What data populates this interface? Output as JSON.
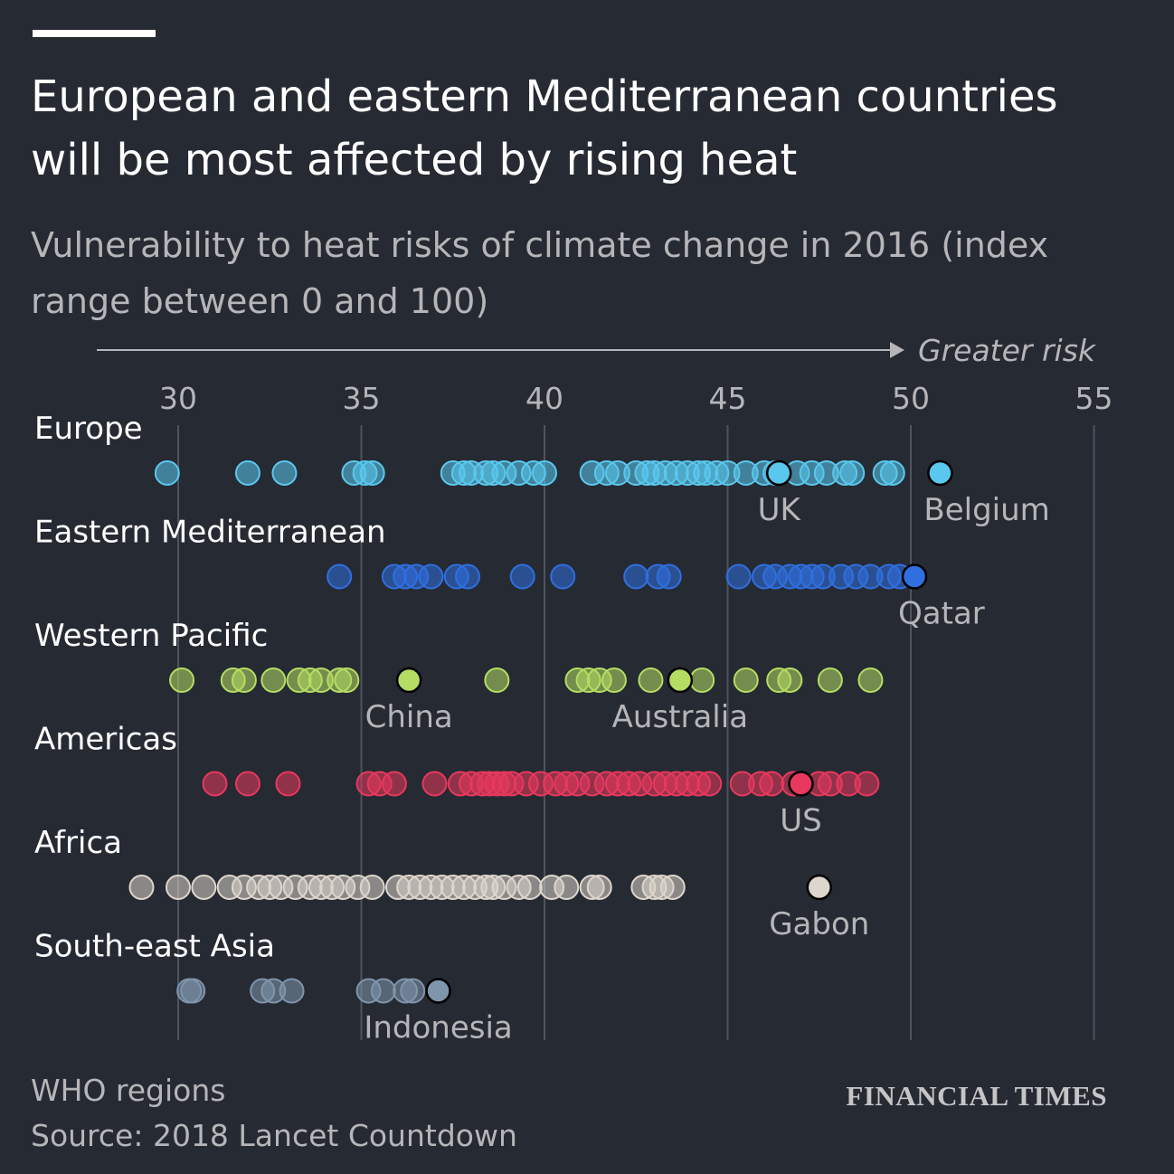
{
  "header": {
    "title": "European and eastern Mediterranean countries will be most affected by rising heat",
    "subtitle": "Vulnerability to heat risks of climate change in 2016 (index range between 0 and 100)"
  },
  "footer": {
    "note": "WHO regions",
    "source": "Source: 2018 Lancet Countdown",
    "logo": "FINANCIAL TIMES"
  },
  "chart_data": {
    "type": "scatter",
    "title": "European and eastern Mediterranean countries will be most affected by rising heat",
    "subtitle": "Vulnerability to heat risks of climate change in 2016 (index range between 0 and 100)",
    "axis_direction_label": "Greater risk",
    "xlim": [
      27,
      56
    ],
    "ticks": [
      30,
      35,
      40,
      45,
      50,
      55
    ],
    "grid": true,
    "series": [
      {
        "name": "Europe",
        "color": "#5ac8ee",
        "values": [
          29.7,
          31.9,
          32.9,
          34.8,
          35.1,
          35.3,
          37.5,
          37.8,
          38.0,
          38.4,
          38.6,
          38.9,
          39.3,
          39.7,
          40.0,
          41.3,
          41.7,
          42.0,
          42.5,
          42.8,
          43.0,
          43.3,
          43.6,
          43.9,
          44.2,
          44.4,
          44.7,
          45.0,
          45.5,
          46.0,
          46.3,
          46.9,
          47.3,
          47.7,
          48.2,
          48.4,
          49.3,
          49.5
        ],
        "highlights": [
          {
            "label": "UK",
            "value": 46.4
          },
          {
            "label": "Belgium",
            "value": 50.8
          }
        ]
      },
      {
        "name": "Eastern Mediterranean",
        "color": "#2f6fe0",
        "values": [
          34.4,
          35.9,
          36.2,
          36.5,
          36.9,
          37.6,
          37.9,
          39.4,
          40.5,
          42.5,
          43.1,
          43.4,
          45.3,
          46.0,
          46.3,
          46.7,
          47.0,
          47.3,
          47.6,
          48.1,
          48.5,
          48.9,
          49.4,
          49.7
        ],
        "highlights": [
          {
            "label": "Qatar",
            "value": 50.1
          }
        ]
      },
      {
        "name": "Western Pacific",
        "color": "#b5dc63",
        "values": [
          30.1,
          31.5,
          31.8,
          32.6,
          33.3,
          33.6,
          33.9,
          34.4,
          34.6,
          38.7,
          40.9,
          41.2,
          41.5,
          41.9,
          42.9,
          44.3,
          45.5,
          46.4,
          46.7,
          47.8,
          48.9
        ],
        "highlights": [
          {
            "label": "China",
            "value": 36.3
          },
          {
            "label": "Australia",
            "value": 43.7
          }
        ]
      },
      {
        "name": "Americas",
        "color": "#e8385d",
        "values": [
          31.0,
          31.9,
          33.0,
          35.2,
          35.5,
          35.9,
          37.0,
          37.7,
          38.0,
          38.3,
          38.5,
          38.7,
          38.9,
          39.1,
          39.5,
          39.9,
          40.3,
          40.6,
          40.9,
          41.3,
          41.7,
          42.0,
          42.3,
          42.6,
          43.0,
          43.3,
          43.6,
          43.9,
          44.2,
          44.5,
          45.4,
          45.9,
          46.2,
          46.8,
          47.5,
          47.8,
          48.3,
          48.8
        ],
        "highlights": [
          {
            "label": "US",
            "value": 47.0
          }
        ]
      },
      {
        "name": "Africa",
        "color": "#ddd6cc",
        "values": [
          29.0,
          30.0,
          30.7,
          31.4,
          31.8,
          32.2,
          32.5,
          32.8,
          33.2,
          33.6,
          33.9,
          34.2,
          34.5,
          34.9,
          35.3,
          36.0,
          36.3,
          36.6,
          36.9,
          37.2,
          37.5,
          37.8,
          38.1,
          38.4,
          38.6,
          38.9,
          39.3,
          39.6,
          40.2,
          40.6,
          41.3,
          41.5,
          42.7,
          43.0,
          43.2,
          43.5
        ],
        "highlights": [
          {
            "label": "Gabon",
            "value": 47.5
          }
        ]
      },
      {
        "name": "South-east Asia",
        "color": "#7f95ac",
        "values": [
          30.3,
          30.4,
          32.3,
          32.6,
          33.1,
          35.2,
          35.6,
          36.2,
          36.4
        ],
        "highlights": [
          {
            "label": "Indonesia",
            "value": 37.1
          }
        ]
      }
    ]
  }
}
